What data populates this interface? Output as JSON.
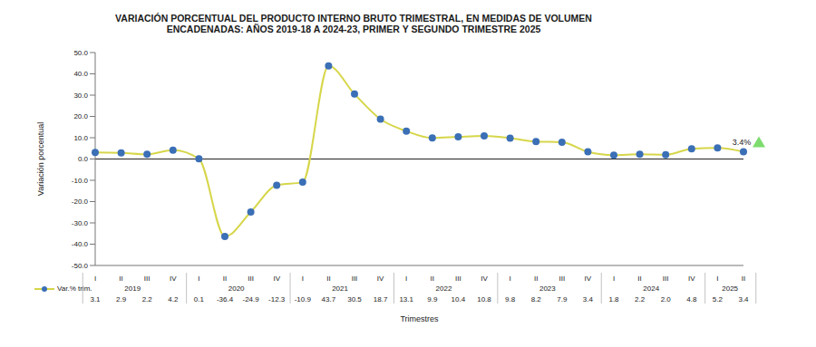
{
  "chart_data": {
    "type": "line",
    "title": "VARIACIÓN PORCENTUAL DEL PRODUCTO INTERNO BRUTO TRIMESTRAL, EN MEDIDAS DE VOLUMEN\nENCADENADAS: AÑOS 2019-18 A 2024-23, PRIMER Y SEGUNDO TRIMESTRE 2025",
    "y_label": "Variación porcentual",
    "x_label": "Trimestres",
    "categories": [
      "I",
      "II",
      "III",
      "IV",
      "I",
      "II",
      "III",
      "IV",
      "I",
      "II",
      "III",
      "IV",
      "I",
      "II",
      "III",
      "IV",
      "I",
      "II",
      "III",
      "IV",
      "I",
      "II",
      "III",
      "IV",
      "I",
      "II"
    ],
    "year_labels": [
      "2019",
      "2020",
      "2021",
      "2022",
      "2023",
      "2024",
      "2025"
    ],
    "series": [
      {
        "name": "Var.% trim.",
        "color": "#d6d64a",
        "marker": "circle",
        "marker_color": "#3b6fb6",
        "values": [
          3.1,
          2.9,
          2.2,
          4.2,
          0.1,
          -36.4,
          -24.9,
          -12.3,
          -10.9,
          43.7,
          30.5,
          18.7,
          13.1,
          9.9,
          10.4,
          10.8,
          9.8,
          8.2,
          7.9,
          3.4,
          1.8,
          2.2,
          2.0,
          4.8,
          5.2,
          3.4
        ],
        "value_labels": [
          "3.1",
          "2.9",
          "2.2",
          "4.2",
          "0.1",
          "-36.4",
          "-24.9",
          "-12.3",
          "-10.9",
          "43.7",
          "30.5",
          "18.7",
          "13.1",
          "9.9",
          "10.4",
          "10.8",
          "9.8",
          "8.2",
          "7.9",
          "3.4",
          "1.8",
          "2.2",
          "2.0",
          "4.8",
          "5.2",
          "3.4"
        ]
      }
    ],
    "annotation": "3.4%",
    "annotation_color": "#7ddc6e",
    "ylim": [
      -50,
      50
    ],
    "yticks": [
      {
        "value": -50,
        "label": "-50.0"
      },
      {
        "value": -40,
        "label": "-40.0"
      },
      {
        "value": -30,
        "label": "-30.0"
      },
      {
        "value": -20,
        "label": "-20.0"
      },
      {
        "value": -10,
        "label": "-10.0"
      },
      {
        "value": 0,
        "label": "0.0"
      },
      {
        "value": 10,
        "label": "10.0"
      },
      {
        "value": 20,
        "label": "20.0"
      },
      {
        "value": 30,
        "label": "30.0"
      },
      {
        "value": 40,
        "label": "40.0"
      },
      {
        "value": 50,
        "label": "50.0"
      }
    ],
    "grid": false,
    "data_labels": true
  }
}
